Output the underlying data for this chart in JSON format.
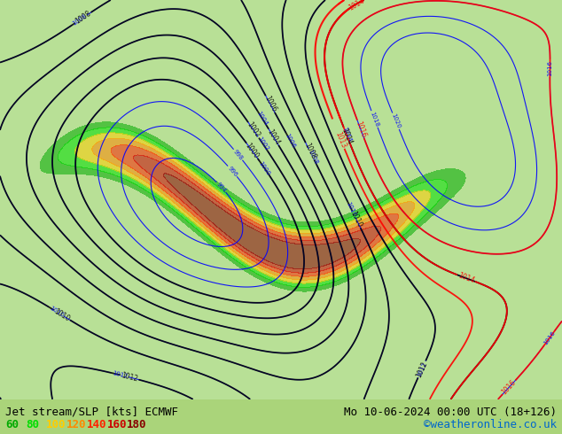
{
  "title_left": "Jet stream/SLP [kts] ECMWF",
  "title_right": "Mo 10-06-2024 00:00 UTC (18+126)",
  "credit": "©weatheronline.co.uk",
  "legend_values": [
    "60",
    "80",
    "100",
    "120",
    "140",
    "160",
    "180"
  ],
  "legend_colors": [
    "#00aa00",
    "#00dd00",
    "#ffcc00",
    "#ff8800",
    "#ff2200",
    "#cc0000",
    "#880000"
  ],
  "background_color": "#aad47a",
  "map_background": "#b8e096",
  "title_font_size": 9,
  "legend_font_size": 9,
  "fig_width": 6.34,
  "fig_height": 4.9,
  "dpi": 100
}
